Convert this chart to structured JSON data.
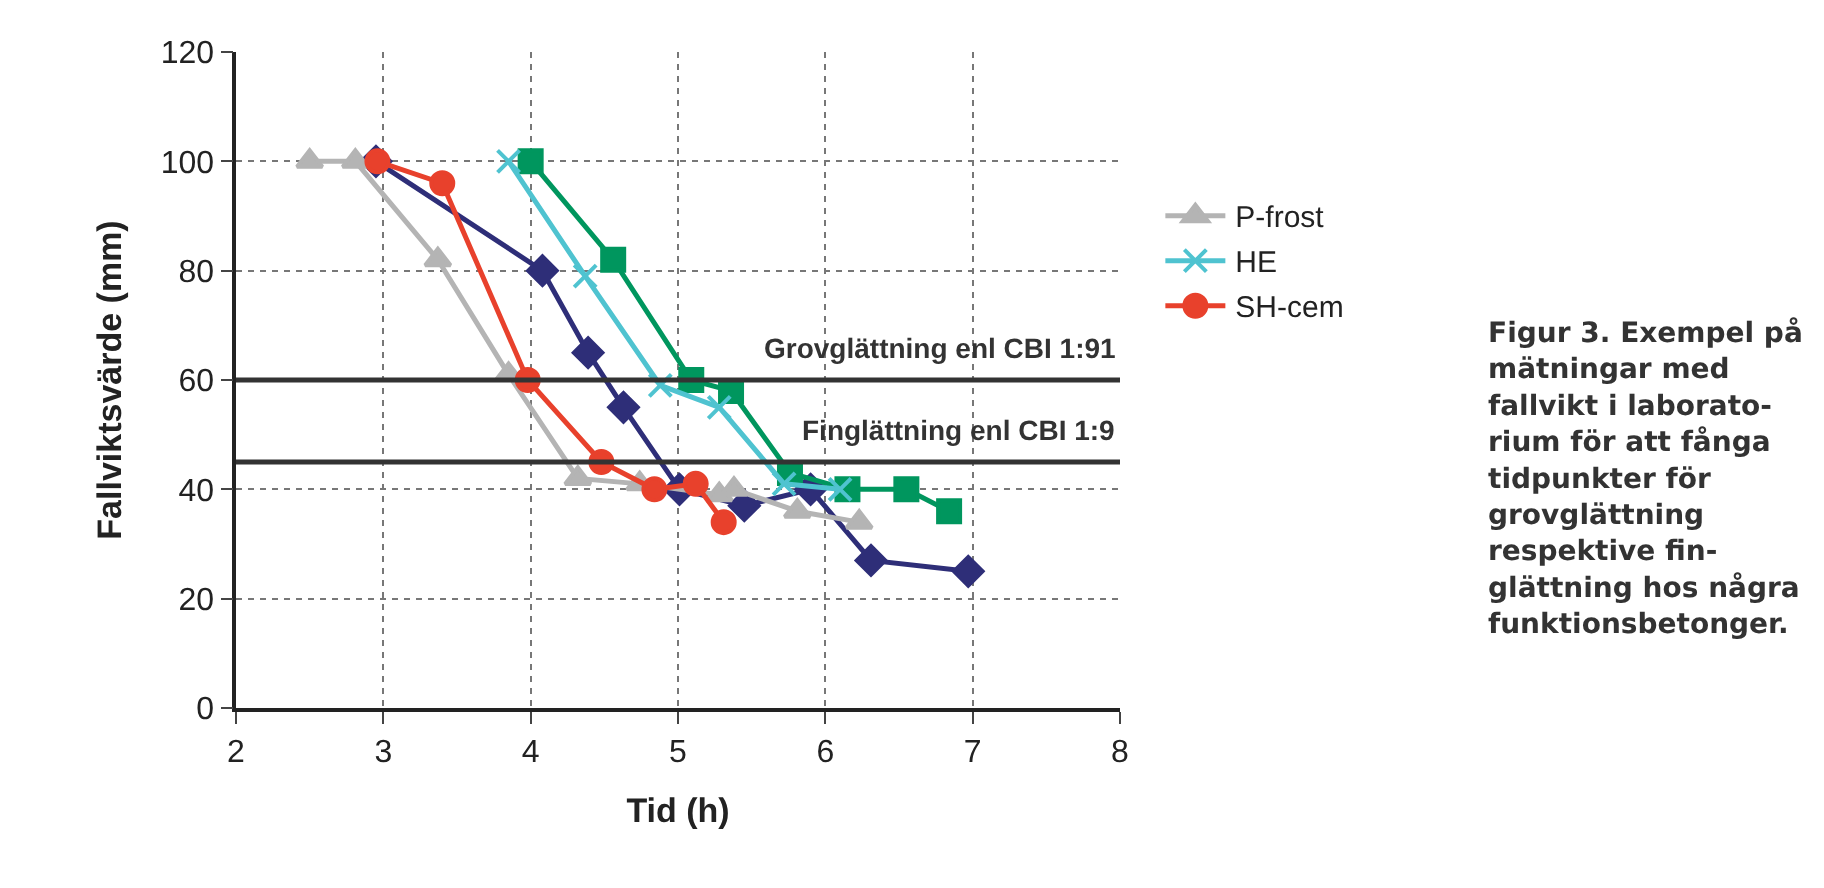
{
  "chart_data": {
    "type": "line",
    "xlabel": "Tid (h)",
    "ylabel": "Fallviktsvärde (mm)",
    "xlim": [
      2,
      8
    ],
    "xticks": [
      2,
      3,
      4,
      5,
      6,
      7,
      8
    ],
    "ylim": [
      0,
      120
    ],
    "yticks": [
      0,
      20,
      40,
      60,
      80,
      100,
      120
    ],
    "grid": true,
    "legend": "right",
    "line_style": "solid",
    "series": [
      {
        "color": "#2e2e78",
        "marker": "diamond",
        "x": [
          2.95,
          4.08,
          4.39,
          4.63,
          5.01,
          5.45,
          5.9,
          6.31,
          6.97
        ],
        "values": [
          100,
          80,
          65,
          55,
          40,
          37,
          40,
          27,
          25
        ]
      },
      {
        "color": "#00965e",
        "marker": "square",
        "x": [
          4.0,
          4.56,
          5.09,
          5.36,
          5.76,
          6.15,
          6.55,
          6.84
        ],
        "values": [
          100,
          82,
          60,
          58,
          43,
          40,
          40,
          36
        ]
      },
      {
        "name": "P-frost",
        "color": "#b4b4b4",
        "marker": "triangle",
        "x": [
          2.5,
          2.81,
          3.37,
          3.85,
          4.32,
          4.74,
          5.28,
          5.38,
          5.81,
          6.23
        ],
        "values": [
          100,
          100,
          82,
          61,
          42,
          41,
          39,
          40,
          36,
          34
        ]
      },
      {
        "name": "HE",
        "color": "#4fc3d0",
        "marker": "cross",
        "x": [
          3.85,
          4.37,
          4.88,
          5.28,
          5.72,
          6.1
        ],
        "values": [
          100,
          79,
          59,
          55,
          41,
          40
        ]
      },
      {
        "name": "SH-cem",
        "color": "#e8412c",
        "marker": "circle",
        "x": [
          2.96,
          3.4,
          3.98,
          4.48,
          4.84,
          5.12,
          5.31
        ],
        "values": [
          100,
          96,
          60,
          45,
          40,
          41,
          34
        ]
      }
    ],
    "ref_lines": [
      {
        "axis": "y",
        "value": 60,
        "color": "#333333"
      },
      {
        "axis": "y",
        "value": 45,
        "color": "#333333"
      }
    ],
    "annotations": [
      {
        "text": "Grovglättning enl CBI 1:91",
        "y": 60
      },
      {
        "text": "Finglättning enl CBI 1:9",
        "y": 45
      },
      "Figur 3. Exempel på\nmätningar med\nfallvikt i laborato-\nrium för att fånga\ntidpunkter för\ngrovglättning\nrespektive fin-\nglättning hos några\nfunktionsbetonger."
    ]
  }
}
